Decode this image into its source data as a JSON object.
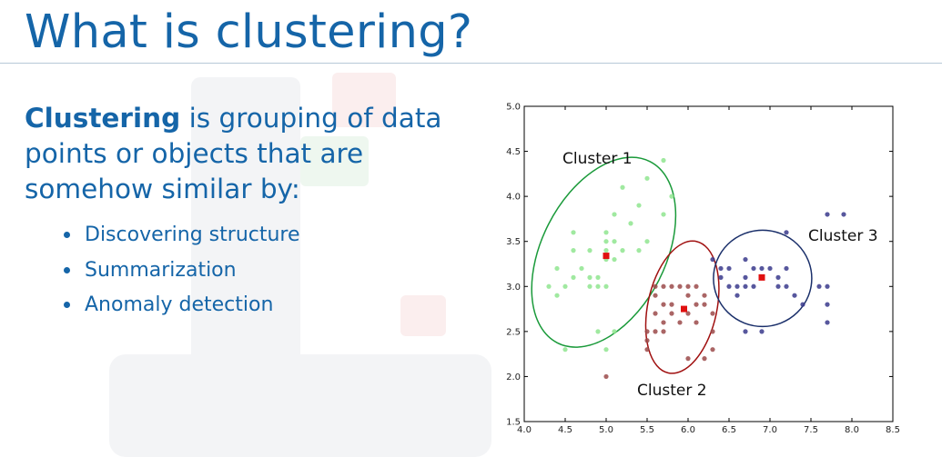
{
  "slide": {
    "title": "What is clustering?",
    "intro_bold": "Clustering",
    "intro_rest": " is grouping of data points or objects that are somehow similar by:",
    "bullets": [
      "Discovering structure",
      "Summarization",
      "Anomaly detection"
    ]
  },
  "chart_data": {
    "type": "scatter",
    "xlim": [
      4.0,
      8.5
    ],
    "ylim": [
      1.5,
      5.0
    ],
    "x_ticks": [
      "4.0",
      "4.5",
      "5.0",
      "5.5",
      "6.0",
      "6.5",
      "7.0",
      "7.5",
      "8.0",
      "8.5"
    ],
    "y_ticks": [
      "1.5",
      "2.0",
      "2.5",
      "3.0",
      "3.5",
      "4.0",
      "4.5",
      "5.0"
    ],
    "grid": false,
    "annotations": [
      "Cluster 1",
      "Cluster 2",
      "Cluster 3"
    ],
    "colors": {
      "cluster1": "#8fe58f",
      "cluster2": "#9b4a4a",
      "cluster3": "#3a3a8c",
      "centroid": "#e01010",
      "ellipse1": "#1a9a3a",
      "ellipse2": "#a01010",
      "ellipse3": "#1a2f6a"
    },
    "series": [
      {
        "color": "green",
        "points": [
          [
            4.3,
            3.0
          ],
          [
            4.4,
            2.9
          ],
          [
            4.4,
            3.2
          ],
          [
            4.5,
            2.3
          ],
          [
            4.5,
            3.0
          ],
          [
            4.6,
            3.1
          ],
          [
            4.6,
            3.4
          ],
          [
            4.7,
            3.2
          ],
          [
            4.8,
            3.0
          ],
          [
            4.8,
            3.4
          ],
          [
            4.9,
            3.0
          ],
          [
            4.9,
            3.1
          ],
          [
            5.0,
            3.0
          ],
          [
            5.0,
            3.3
          ],
          [
            5.0,
            3.4
          ],
          [
            5.0,
            3.5
          ],
          [
            5.0,
            3.6
          ],
          [
            5.0,
            2.3
          ],
          [
            5.1,
            3.3
          ],
          [
            5.1,
            3.5
          ],
          [
            5.1,
            3.8
          ],
          [
            5.1,
            2.5
          ],
          [
            5.2,
            3.4
          ],
          [
            5.2,
            4.1
          ],
          [
            5.3,
            3.7
          ],
          [
            5.4,
            3.4
          ],
          [
            5.4,
            3.9
          ],
          [
            5.5,
            3.5
          ],
          [
            5.5,
            4.2
          ],
          [
            5.7,
            3.8
          ],
          [
            5.7,
            4.4
          ],
          [
            4.6,
            3.6
          ],
          [
            4.8,
            3.1
          ],
          [
            5.8,
            4.0
          ],
          [
            4.9,
            2.5
          ]
        ]
      },
      {
        "color": "red",
        "points": [
          [
            5.0,
            2.0
          ],
          [
            5.5,
            2.3
          ],
          [
            5.5,
            2.4
          ],
          [
            5.6,
            2.5
          ],
          [
            5.6,
            2.7
          ],
          [
            5.6,
            2.9
          ],
          [
            5.7,
            2.5
          ],
          [
            5.7,
            2.6
          ],
          [
            5.7,
            2.8
          ],
          [
            5.7,
            3.0
          ],
          [
            5.8,
            2.7
          ],
          [
            5.8,
            2.8
          ],
          [
            5.9,
            3.0
          ],
          [
            6.0,
            2.2
          ],
          [
            6.0,
            2.7
          ],
          [
            6.0,
            2.9
          ],
          [
            6.1,
            2.8
          ],
          [
            6.1,
            3.0
          ],
          [
            6.2,
            2.2
          ],
          [
            6.2,
            2.9
          ],
          [
            6.3,
            2.3
          ],
          [
            6.3,
            2.5
          ],
          [
            6.3,
            2.7
          ],
          [
            5.9,
            2.6
          ],
          [
            5.8,
            3.0
          ],
          [
            6.0,
            3.0
          ],
          [
            6.1,
            2.6
          ],
          [
            5.6,
            3.0
          ],
          [
            6.2,
            2.8
          ],
          [
            5.5,
            2.5
          ]
        ]
      },
      {
        "color": "blue",
        "points": [
          [
            6.3,
            3.3
          ],
          [
            6.4,
            3.1
          ],
          [
            6.4,
            3.2
          ],
          [
            6.5,
            3.0
          ],
          [
            6.5,
            3.2
          ],
          [
            6.6,
            3.0
          ],
          [
            6.7,
            3.0
          ],
          [
            6.7,
            3.1
          ],
          [
            6.7,
            3.3
          ],
          [
            6.8,
            3.0
          ],
          [
            6.8,
            3.2
          ],
          [
            6.9,
            3.1
          ],
          [
            6.9,
            3.2
          ],
          [
            7.0,
            3.2
          ],
          [
            7.1,
            3.0
          ],
          [
            7.2,
            3.0
          ],
          [
            7.2,
            3.2
          ],
          [
            7.2,
            3.6
          ],
          [
            7.3,
            2.9
          ],
          [
            7.4,
            2.8
          ],
          [
            7.6,
            3.0
          ],
          [
            7.7,
            2.6
          ],
          [
            7.7,
            2.8
          ],
          [
            7.7,
            3.0
          ],
          [
            7.7,
            3.8
          ],
          [
            7.9,
            3.8
          ],
          [
            6.6,
            2.9
          ],
          [
            6.9,
            2.5
          ],
          [
            6.7,
            2.5
          ],
          [
            7.1,
            3.1
          ]
        ]
      }
    ],
    "centroids": [
      [
        5.0,
        3.34
      ],
      [
        5.95,
        2.75
      ],
      [
        6.9,
        3.1
      ]
    ]
  }
}
